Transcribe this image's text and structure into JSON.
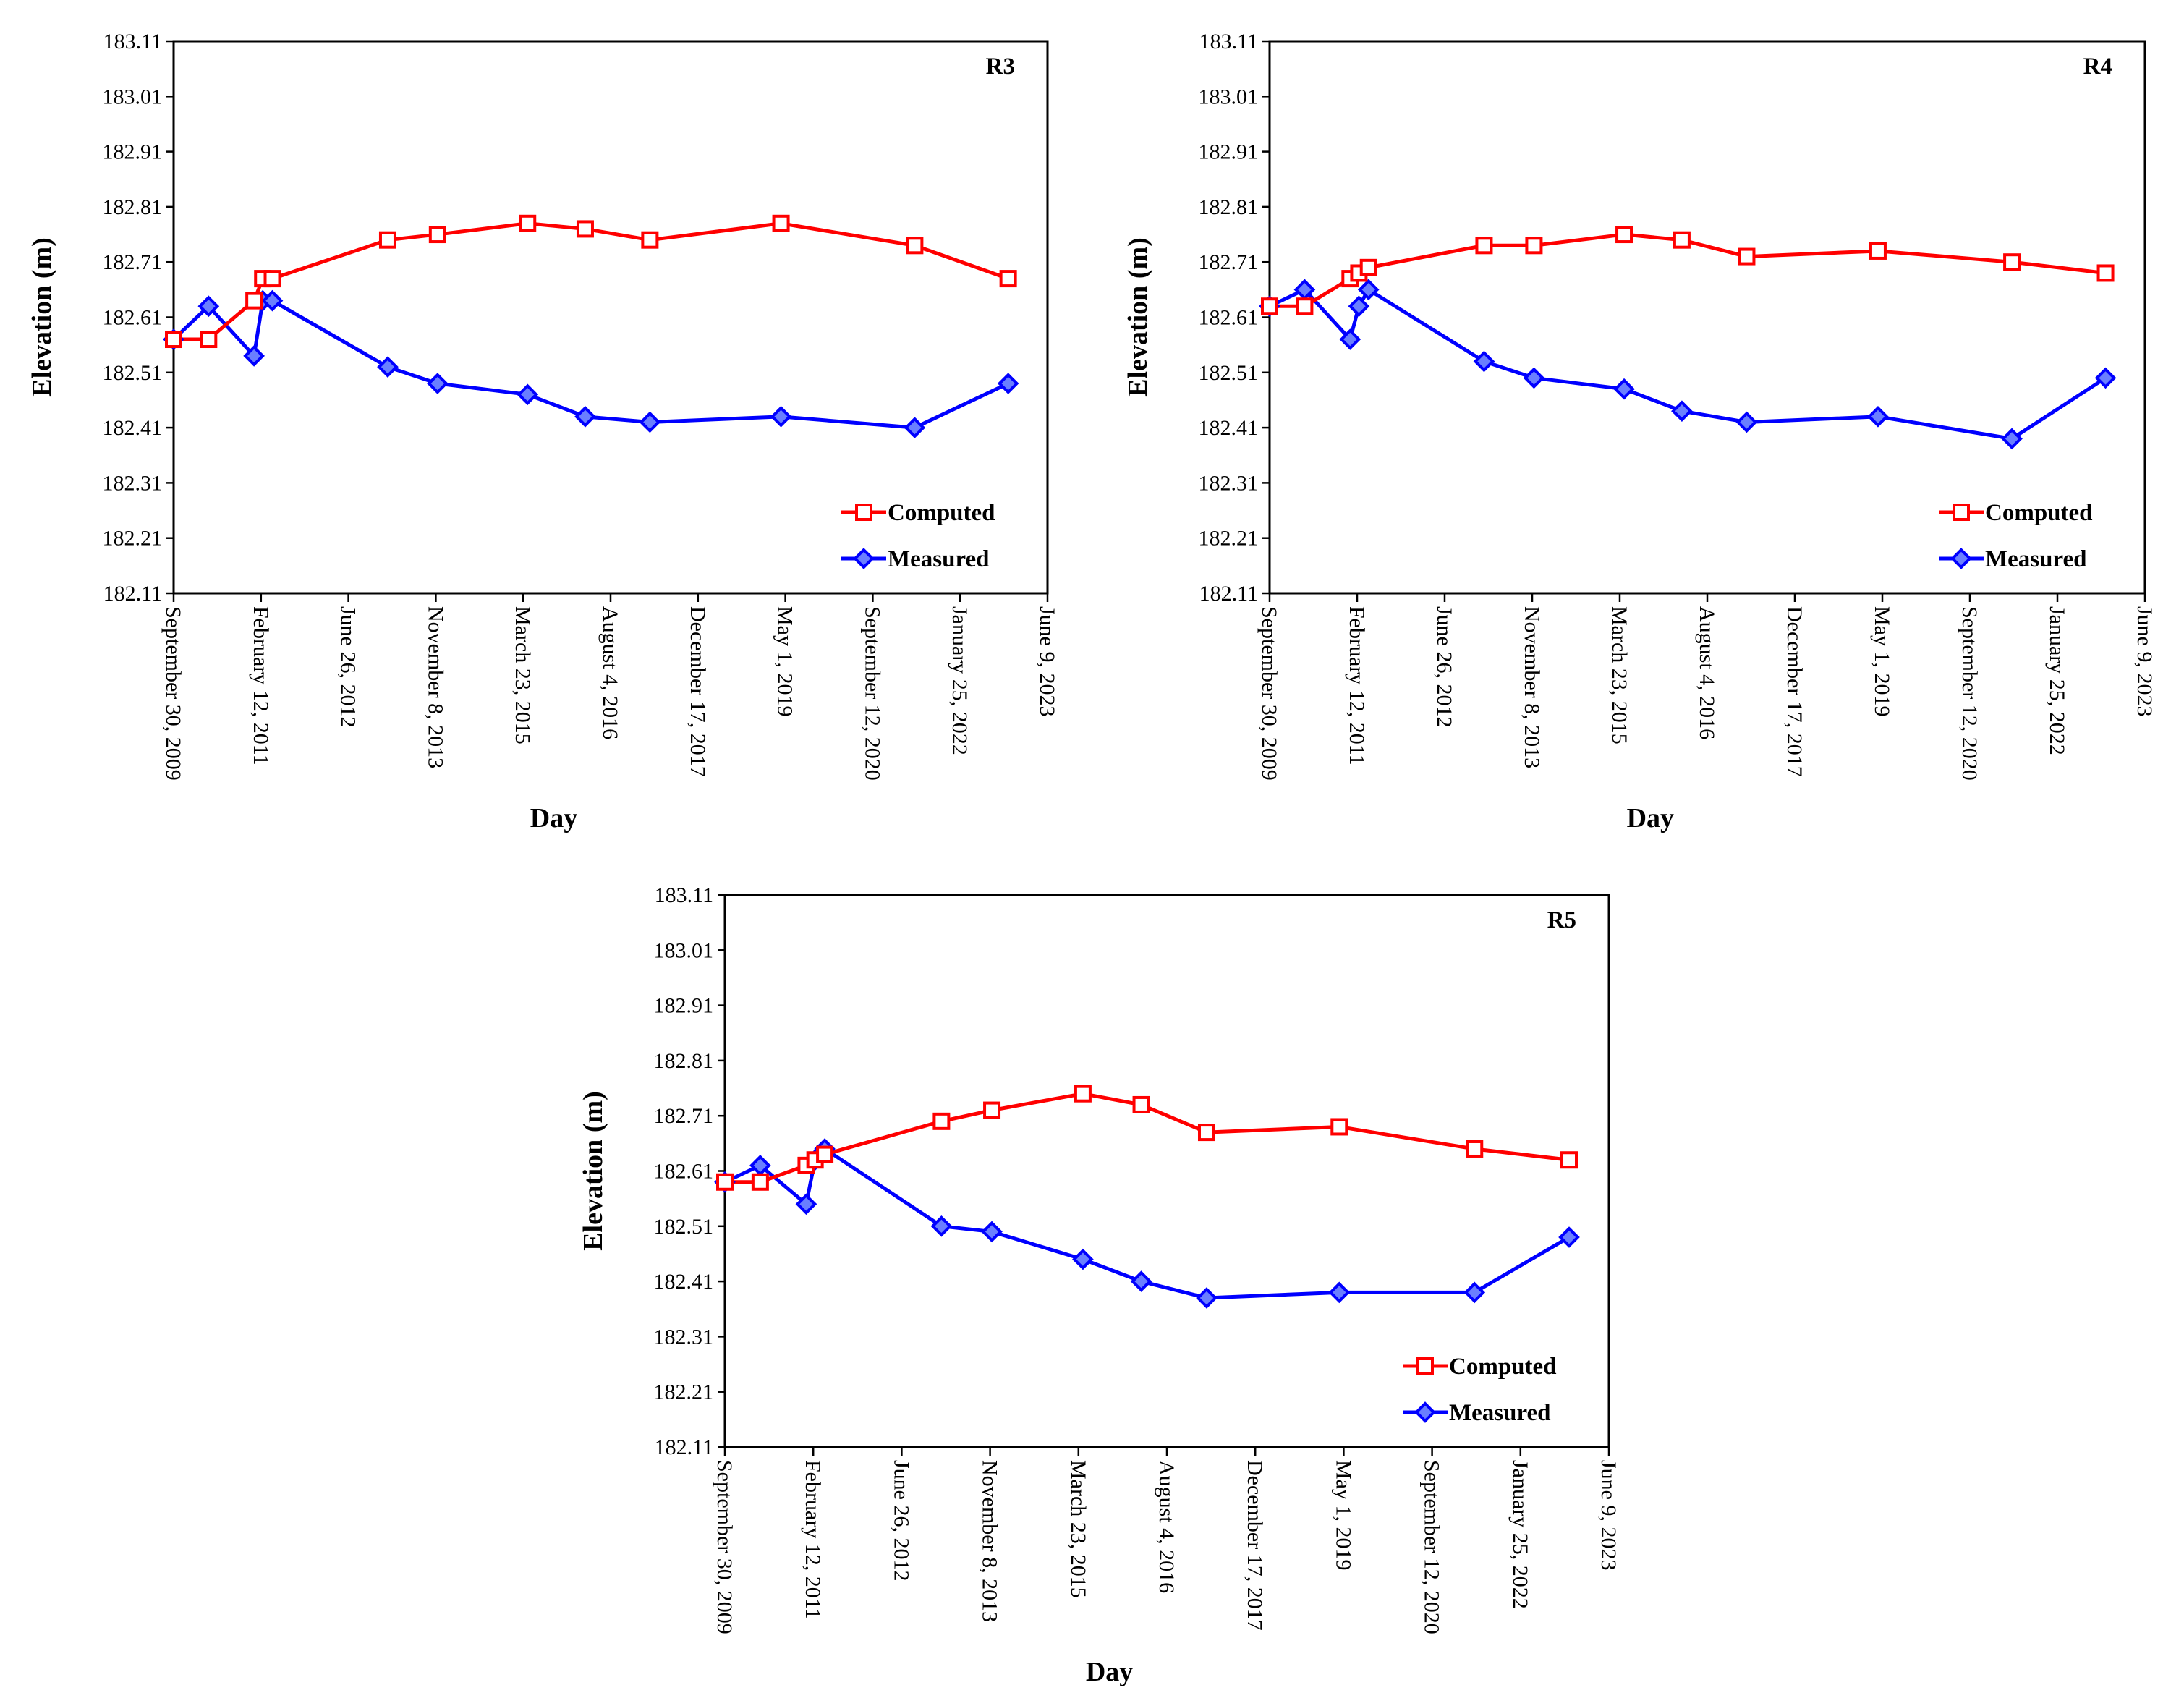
{
  "chart_data": [
    {
      "type": "line",
      "panel_label": "R3",
      "xlabel": "Day",
      "ylabel": "Elevation (m)",
      "ylim": [
        182.11,
        183.11
      ],
      "y_ticks": [
        "183.11",
        "183.01",
        "182.91",
        "182.81",
        "182.71",
        "182.61",
        "182.51",
        "182.41",
        "182.31",
        "182.21",
        "182.11"
      ],
      "x_ticks": [
        "September 30, 2009",
        "February 12, 2011",
        "June 26, 2012",
        "November 8, 2013",
        "March 23, 2015",
        "August 4, 2016",
        "December 17, 2017",
        "May 1, 2019",
        "September 12, 2020",
        "January 25, 2022",
        "June 9, 2023"
      ],
      "legend_position": "bottom-right",
      "series": [
        {
          "name": "Computed",
          "color": "#ff0000",
          "marker": "square",
          "x": [
            0,
            0.4,
            0.92,
            1.02,
            1.13,
            2.45,
            3.02,
            4.05,
            4.71,
            5.45,
            6.95,
            8.48,
            9.55
          ],
          "values": [
            182.57,
            182.57,
            182.64,
            182.68,
            182.68,
            182.75,
            182.76,
            182.78,
            182.77,
            182.75,
            182.78,
            182.74,
            182.68
          ]
        },
        {
          "name": "Measured",
          "color": "#0000ff",
          "marker": "diamond",
          "x": [
            0,
            0.4,
            0.92,
            1.02,
            1.13,
            2.45,
            3.02,
            4.05,
            4.71,
            5.45,
            6.95,
            8.48,
            9.55
          ],
          "values": [
            182.57,
            182.63,
            182.54,
            182.64,
            182.64,
            182.52,
            182.49,
            182.47,
            182.43,
            182.42,
            182.43,
            182.41,
            182.49
          ]
        }
      ]
    },
    {
      "type": "line",
      "panel_label": "R4",
      "xlabel": "Day",
      "ylabel": "Elevation (m)",
      "ylim": [
        182.11,
        183.11
      ],
      "y_ticks": [
        "183.11",
        "183.01",
        "182.91",
        "182.81",
        "182.71",
        "182.61",
        "182.51",
        "182.41",
        "182.31",
        "182.21",
        "182.11"
      ],
      "x_ticks": [
        "September 30, 2009",
        "February 12, 2011",
        "June 26, 2012",
        "November 8, 2013",
        "March 23, 2015",
        "August 4, 2016",
        "December 17, 2017",
        "May 1, 2019",
        "September 12, 2020",
        "January 25, 2022",
        "June 9, 2023"
      ],
      "legend_position": "bottom-right",
      "series": [
        {
          "name": "Computed",
          "color": "#ff0000",
          "marker": "square",
          "x": [
            0,
            0.4,
            0.92,
            1.02,
            1.13,
            2.45,
            3.02,
            4.05,
            4.71,
            5.45,
            6.95,
            8.48,
            9.55
          ],
          "values": [
            182.63,
            182.63,
            182.68,
            182.69,
            182.7,
            182.74,
            182.74,
            182.76,
            182.75,
            182.72,
            182.73,
            182.71,
            182.69
          ]
        },
        {
          "name": "Measured",
          "color": "#0000ff",
          "marker": "diamond",
          "x": [
            0,
            0.4,
            0.92,
            1.02,
            1.13,
            2.45,
            3.02,
            4.05,
            4.71,
            5.45,
            6.95,
            8.48,
            9.55
          ],
          "values": [
            182.63,
            182.66,
            182.57,
            182.63,
            182.66,
            182.53,
            182.5,
            182.48,
            182.44,
            182.42,
            182.43,
            182.39,
            182.5
          ]
        }
      ]
    },
    {
      "type": "line",
      "panel_label": "R5",
      "xlabel": "Day",
      "ylabel": "Elevation (m)",
      "ylim": [
        182.11,
        183.11
      ],
      "y_ticks": [
        "183.11",
        "183.01",
        "182.91",
        "182.81",
        "182.71",
        "182.61",
        "182.51",
        "182.41",
        "182.31",
        "182.21",
        "182.11"
      ],
      "x_ticks": [
        "September 30, 2009",
        "February 12, 2011",
        "June 26, 2012",
        "November 8, 2013",
        "March 23, 2015",
        "August 4, 2016",
        "December 17, 2017",
        "May 1, 2019",
        "September 12, 2020",
        "January 25, 2022",
        "June 9, 2023"
      ],
      "legend_position": "bottom-right",
      "series": [
        {
          "name": "Computed",
          "color": "#ff0000",
          "marker": "square",
          "x": [
            0,
            0.4,
            0.92,
            1.02,
            1.13,
            2.45,
            3.02,
            4.05,
            4.71,
            5.45,
            6.95,
            8.48,
            9.55
          ],
          "values": [
            182.59,
            182.59,
            182.62,
            182.63,
            182.64,
            182.7,
            182.72,
            182.75,
            182.73,
            182.68,
            182.69,
            182.65,
            182.63
          ]
        },
        {
          "name": "Measured",
          "color": "#0000ff",
          "marker": "diamond",
          "x": [
            0,
            0.4,
            0.92,
            1.02,
            1.13,
            2.45,
            3.02,
            4.05,
            4.71,
            5.45,
            6.95,
            8.48,
            9.55
          ],
          "values": [
            182.59,
            182.62,
            182.55,
            182.63,
            182.65,
            182.51,
            182.5,
            182.45,
            182.41,
            182.38,
            182.39,
            182.39,
            182.49
          ]
        }
      ]
    }
  ]
}
